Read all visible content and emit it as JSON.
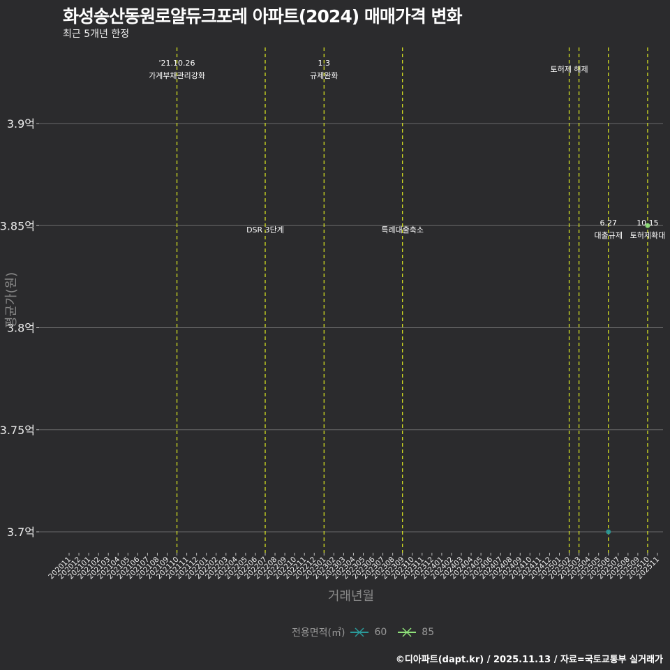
{
  "title": "화성송산동원로얄듀크포레 아파트(2024) 매매가격 변화",
  "subtitle": "최근 5개년 한정",
  "caption": "©디아파트(dapt.kr) / 2025.11.13 / 자료=국토교통부 실거래가",
  "chart_data": {
    "type": "scatter",
    "title": "화성송산동원로얄듀크포레 아파트(2024) 매매가격 변화",
    "xlabel": "거래년월",
    "ylabel": "평균가(원)",
    "x_ticks": [
      "202011",
      "202012",
      "202101",
      "202102",
      "202103",
      "202104",
      "202105",
      "202106",
      "202107",
      "202108",
      "202109",
      "202110",
      "202111",
      "202112",
      "202201",
      "202202",
      "202203",
      "202204",
      "202205",
      "202206",
      "202207",
      "202208",
      "202209",
      "202210",
      "202211",
      "202212",
      "202301",
      "202302",
      "202303",
      "202304",
      "202305",
      "202306",
      "202307",
      "202308",
      "202309",
      "202310",
      "202311",
      "202312",
      "202401",
      "202402",
      "202403",
      "202404",
      "202405",
      "202406",
      "202407",
      "202408",
      "202409",
      "202410",
      "202411",
      "202412",
      "202501",
      "202502",
      "202503",
      "202504",
      "202505",
      "202506",
      "202507",
      "202508",
      "202509",
      "202510",
      "202511"
    ],
    "y_ticks": [
      3.7,
      3.75,
      3.8,
      3.85,
      3.9
    ],
    "y_tick_labels": [
      "3.7억",
      "3.75억",
      "3.8억",
      "3.85억",
      "3.9억"
    ],
    "ylim": [
      3.68,
      3.935
    ],
    "grid": true,
    "legend": {
      "title": "전용면적(㎡)",
      "position": "bottom"
    },
    "series": [
      {
        "name": "60",
        "color": "#2a9a9a",
        "points": [
          {
            "x": "202506",
            "y": 3.7
          }
        ]
      },
      {
        "name": "85",
        "color": "#8fe27a",
        "points": [
          {
            "x": "202510",
            "y": 3.85
          }
        ]
      }
    ],
    "events": [
      {
        "x": "202110",
        "lines": [
          "'21.10.26",
          "가계부채관리강화"
        ],
        "row": "top"
      },
      {
        "x": "202207",
        "lines": [
          "DSR 3단계"
        ],
        "row": "mid"
      },
      {
        "x": "202301",
        "lines": [
          "1.3",
          "규제완화"
        ],
        "row": "top"
      },
      {
        "x": "202309",
        "lines": [
          "특례대출축소"
        ],
        "row": "mid"
      },
      {
        "x": "202502",
        "lines": [
          "토허제 해제"
        ],
        "row": "top2"
      },
      {
        "x": "202503",
        "lines": [],
        "row": "none"
      },
      {
        "x": "202506",
        "lines": [
          "6.27",
          "대출규제"
        ],
        "row": "mid2"
      },
      {
        "x": "202510",
        "lines": [
          "10.15",
          "토허제확대"
        ],
        "row": "mid2"
      }
    ],
    "event_line_color": "#d4e021"
  }
}
